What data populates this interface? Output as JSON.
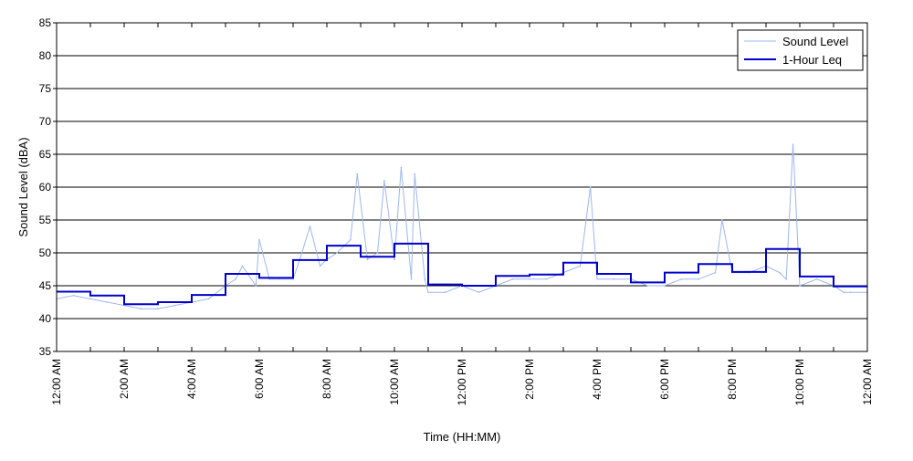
{
  "chart_data": {
    "type": "line",
    "title": "",
    "xlabel": "Time (HH:MM)",
    "ylabel": "Sound Level (dBA)",
    "ylim": [
      35,
      85
    ],
    "xlim_hours": [
      0,
      24
    ],
    "y_ticks": [
      35,
      40,
      45,
      50,
      55,
      60,
      65,
      70,
      75,
      80,
      85
    ],
    "x_ticks": [
      {
        "hour": 0,
        "label": "12:00 AM"
      },
      {
        "hour": 2,
        "label": "2:00 AM"
      },
      {
        "hour": 4,
        "label": "4:00 AM"
      },
      {
        "hour": 6,
        "label": "6:00 AM"
      },
      {
        "hour": 8,
        "label": "8:00 AM"
      },
      {
        "hour": 10,
        "label": "10:00 AM"
      },
      {
        "hour": 12,
        "label": "12:00 PM"
      },
      {
        "hour": 14,
        "label": "2:00 PM"
      },
      {
        "hour": 16,
        "label": "4:00 PM"
      },
      {
        "hour": 18,
        "label": "6:00 PM"
      },
      {
        "hour": 20,
        "label": "8:00 PM"
      },
      {
        "hour": 22,
        "label": "10:00 PM"
      },
      {
        "hour": 24,
        "label": "12:00 AM"
      }
    ],
    "minor_x_ticks_hours": [
      1,
      3,
      5,
      7,
      9,
      11,
      13,
      15,
      17,
      19,
      21,
      23
    ],
    "grid": "horizontal",
    "legend_position": "top-right",
    "series": [
      {
        "name": "Sound Level",
        "color": "#9db7f0",
        "x": [
          0,
          0.5,
          1,
          1.5,
          2,
          2.5,
          3,
          3.5,
          4,
          4.5,
          5,
          5.3,
          5.5,
          5.9,
          6,
          6.3,
          6.6,
          7,
          7.2,
          7.5,
          7.8,
          8,
          8.3,
          8.7,
          8.9,
          9.2,
          9.5,
          9.7,
          10,
          10.2,
          10.5,
          10.6,
          10.9,
          11,
          11.5,
          12,
          12.5,
          13,
          13.5,
          14,
          14.5,
          15,
          15.5,
          15.8,
          16,
          16.5,
          17,
          17.5,
          18,
          18.5,
          19,
          19.5,
          19.7,
          20,
          20.5,
          21,
          21.4,
          21.6,
          21.8,
          22,
          22.5,
          23,
          23.3,
          23.5,
          24
        ],
        "values": [
          43,
          43.5,
          43,
          42.5,
          42,
          41.5,
          41.5,
          42,
          42.5,
          43,
          45,
          46,
          48,
          45,
          52,
          46,
          46,
          46,
          49,
          54,
          48,
          49,
          50,
          52,
          62,
          49,
          50,
          61,
          49,
          63,
          46,
          62,
          46,
          44,
          44,
          45,
          44,
          45,
          46,
          46,
          46,
          47,
          48,
          60,
          46,
          46,
          46,
          45,
          45,
          46,
          46,
          47,
          55,
          47,
          47,
          48,
          47,
          46,
          66.5,
          45,
          46,
          45,
          44,
          44,
          44
        ]
      },
      {
        "name": "1-Hour Leq",
        "color": "#0000cc",
        "x": [
          0,
          1,
          2,
          3,
          4,
          5,
          6,
          7,
          8,
          9,
          10,
          11,
          12,
          13,
          14,
          15,
          16,
          17,
          18,
          19,
          20,
          21,
          22,
          23,
          24
        ],
        "values": [
          44.1,
          43.5,
          42.2,
          42.5,
          43.6,
          46.8,
          46.2,
          48.9,
          51.1,
          49.4,
          51.4,
          45.2,
          45.0,
          46.5,
          46.7,
          48.5,
          46.8,
          45.5,
          47.0,
          48.3,
          47.1,
          50.6,
          46.4,
          44.9,
          44.9
        ]
      }
    ]
  }
}
